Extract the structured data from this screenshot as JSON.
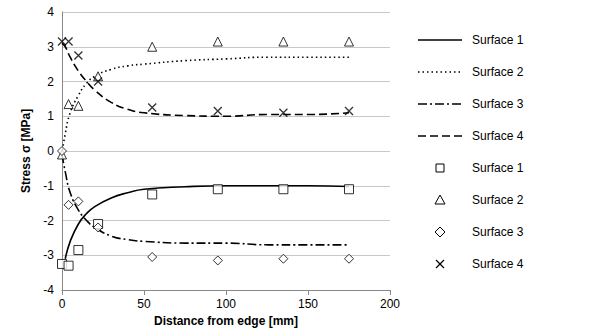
{
  "chart_data": {
    "type": "line",
    "xlabel": "Distance from edge [mm]",
    "ylabel": "Stress σ [MPa]",
    "xlim": [
      0,
      200
    ],
    "xticks": [
      0,
      50,
      100,
      150,
      200
    ],
    "ylim": [
      -4,
      4
    ],
    "yticks": [
      -4,
      -3,
      -2,
      -1,
      0,
      1,
      2,
      3,
      4
    ],
    "grid": true,
    "legend": "right",
    "series": [
      {
        "name": "Surface 1",
        "type": "line",
        "line_style": "solid",
        "color": "#000000",
        "x": [
          2,
          5,
          10,
          15,
          20,
          30,
          40,
          50,
          75,
          100,
          125,
          150,
          175
        ],
        "values": [
          -3.1,
          -2.6,
          -2.1,
          -1.8,
          -1.6,
          -1.35,
          -1.2,
          -1.1,
          -1.03,
          -1.0,
          -1.0,
          -1.0,
          -1.02
        ]
      },
      {
        "name": "Surface 2",
        "type": "line",
        "line_style": "dotted",
        "color": "#000000",
        "x": [
          0,
          2,
          5,
          10,
          15,
          20,
          30,
          40,
          50,
          75,
          100,
          125,
          150,
          175
        ],
        "values": [
          -0.1,
          0.5,
          1.1,
          1.6,
          1.95,
          2.15,
          2.35,
          2.45,
          2.5,
          2.6,
          2.65,
          2.7,
          2.7,
          2.7
        ]
      },
      {
        "name": "Surface 3",
        "type": "line",
        "line_style": "dashdot",
        "color": "#000000",
        "x": [
          0,
          2,
          5,
          10,
          15,
          20,
          30,
          40,
          50,
          75,
          100,
          125,
          150,
          175
        ],
        "values": [
          -0.1,
          -0.6,
          -1.2,
          -1.7,
          -2.0,
          -2.2,
          -2.45,
          -2.55,
          -2.6,
          -2.65,
          -2.65,
          -2.7,
          -2.7,
          -2.7
        ]
      },
      {
        "name": "Surface 4",
        "type": "line",
        "line_style": "dashed",
        "color": "#000000",
        "x": [
          0,
          2,
          5,
          10,
          15,
          20,
          30,
          40,
          50,
          75,
          100,
          125,
          150,
          175
        ],
        "values": [
          3.1,
          3.0,
          2.7,
          2.3,
          2.0,
          1.75,
          1.4,
          1.2,
          1.1,
          1.02,
          1.0,
          1.05,
          1.05,
          1.1
        ]
      },
      {
        "name": "Surface 1",
        "type": "scatter",
        "marker": "square",
        "color": "#000000",
        "x": [
          0,
          4,
          10,
          22,
          55,
          95,
          135,
          175
        ],
        "values": [
          -3.25,
          -3.3,
          -2.85,
          -2.1,
          -1.25,
          -1.1,
          -1.1,
          -1.1
        ]
      },
      {
        "name": "Surface 2",
        "type": "scatter",
        "marker": "triangle",
        "color": "#000000",
        "x": [
          0,
          4,
          10,
          22,
          55,
          95,
          135,
          175
        ],
        "values": [
          -0.1,
          1.35,
          1.3,
          2.15,
          3.0,
          3.15,
          3.15,
          3.15
        ]
      },
      {
        "name": "Surface 3",
        "type": "scatter",
        "marker": "diamond",
        "color": "#000000",
        "x": [
          0,
          4,
          10,
          22,
          55,
          95,
          135,
          175
        ],
        "values": [
          0.0,
          -1.55,
          -1.45,
          -2.2,
          -3.05,
          -3.15,
          -3.1,
          -3.1
        ]
      },
      {
        "name": "Surface 4",
        "type": "scatter",
        "marker": "x",
        "color": "#000000",
        "x": [
          0,
          4,
          10,
          22,
          55,
          95,
          135,
          175
        ],
        "values": [
          3.15,
          3.15,
          2.75,
          2.0,
          1.25,
          1.15,
          1.1,
          1.15
        ]
      }
    ]
  }
}
